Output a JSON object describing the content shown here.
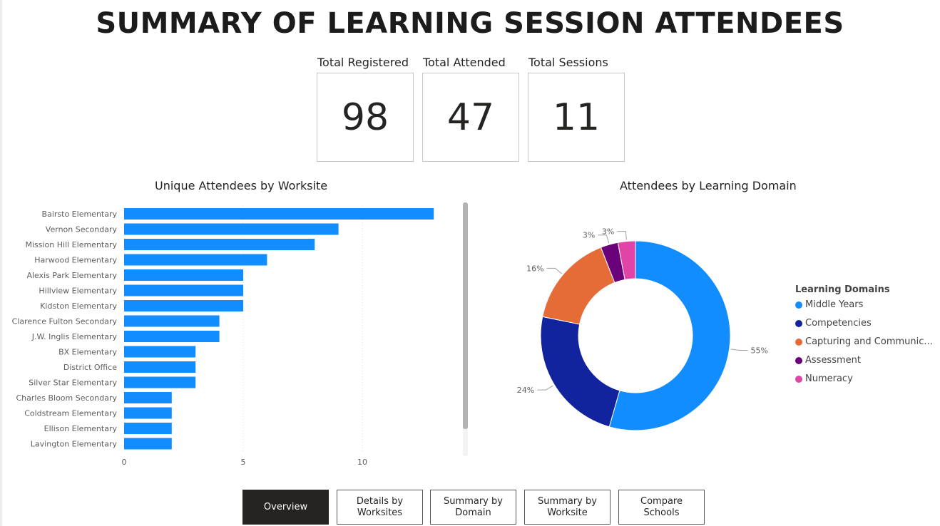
{
  "page": {
    "title": "SUMMARY OF LEARNING SESSION ATTENDEES"
  },
  "kpis": [
    {
      "label": "Total Registered",
      "value": "98"
    },
    {
      "label": "Total Attended",
      "value": "47"
    },
    {
      "label": "Total Sessions",
      "value": "11"
    }
  ],
  "bar_chart": {
    "title": "Unique Attendees by Worksite"
  },
  "donut_chart": {
    "title": "Attendees by Learning Domain",
    "legend_title": "Learning Domains",
    "legend_items": [
      "Middle Years",
      "Competencies",
      "Capturing and Communic...",
      "Assessment",
      "Numeracy"
    ]
  },
  "nav": {
    "buttons": [
      {
        "label": "Overview",
        "active": true
      },
      {
        "label": "Details by Worksites",
        "active": false
      },
      {
        "label": "Summary by Domain",
        "active": false
      },
      {
        "label": "Summary by Worksite",
        "active": false
      },
      {
        "label": "Compare Schools",
        "active": false
      }
    ]
  },
  "chart_data": [
    {
      "type": "bar",
      "orientation": "horizontal",
      "title": "Unique Attendees by Worksite",
      "categories": [
        "Bairsto Elementary",
        "Vernon Secondary",
        "Mission Hill Elementary",
        "Harwood Elementary",
        "Alexis Park Elementary",
        "Hillview Elementary",
        "Kidston Elementary",
        "Clarence Fulton Secondary",
        "J.W. Inglis Elementary",
        "BX Elementary",
        "District Office",
        "Silver Star Elementary",
        "Charles Bloom Secondary",
        "Coldstream Elementary",
        "Ellison Elementary",
        "Lavington Elementary"
      ],
      "values": [
        13,
        9,
        8,
        6,
        5,
        5,
        5,
        4,
        4,
        3,
        3,
        3,
        2,
        2,
        2,
        2
      ],
      "xticks": [
        "0",
        "5",
        "10"
      ],
      "xlim": [
        0,
        13
      ],
      "grid": true,
      "color": "#118DFF"
    },
    {
      "type": "pie",
      "variant": "donut",
      "title": "Attendees by Learning Domain",
      "labels": [
        "Middle Years",
        "Competencies",
        "Capturing and Communic...",
        "Assessment",
        "Numeracy"
      ],
      "values": [
        55,
        24,
        16,
        3,
        3
      ],
      "data_labels": [
        "55%",
        "24%",
        "16%",
        "3%",
        "3%"
      ],
      "colors": [
        "#118DFF",
        "#12239E",
        "#E66C37",
        "#6B007B",
        "#E044A7"
      ],
      "legend_position": "right"
    }
  ]
}
